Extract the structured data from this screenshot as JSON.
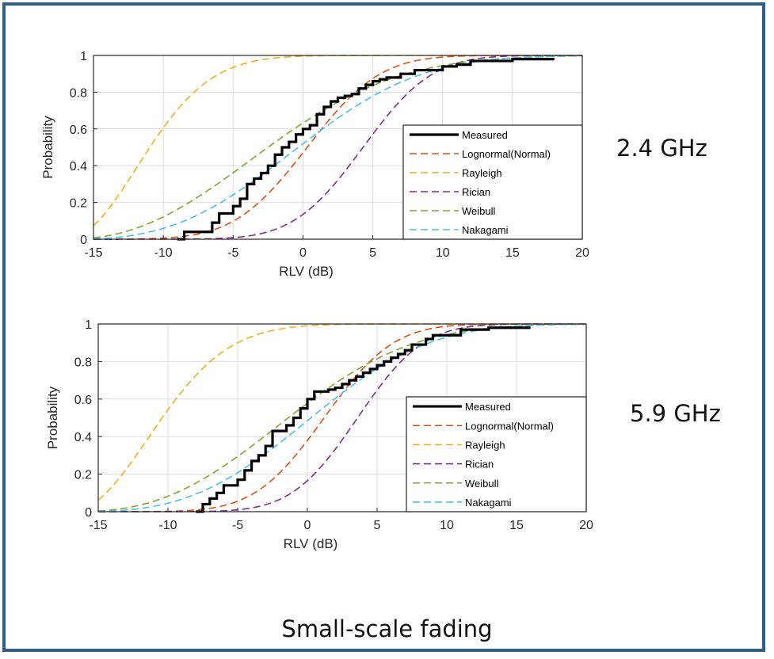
{
  "freq_labels": [
    "2.4 GHz",
    "5.9 GHz"
  ],
  "caption": "Small-scale fading",
  "chart_data": [
    {
      "type": "line",
      "title": "",
      "xlabel": "RLV (dB)",
      "ylabel": "Probability",
      "xlim": [
        -15,
        20
      ],
      "ylim": [
        0,
        1
      ],
      "xticks": [
        -15,
        -10,
        -5,
        0,
        5,
        10,
        15,
        20
      ],
      "yticks": [
        0,
        0.2,
        0.4,
        0.6,
        0.8,
        1
      ],
      "grid": true,
      "legend_position": "bottom-right",
      "series": [
        {
          "name": "Measured",
          "color": "#000000",
          "dashed": false,
          "style": "step",
          "x": [
            -9,
            -8.5,
            -6.5,
            -6,
            -5,
            -4.5,
            -4,
            -3.5,
            -3,
            -2.5,
            -2,
            -1.5,
            -1,
            -0.5,
            0,
            0.5,
            1,
            1.5,
            2,
            2.5,
            3,
            3.5,
            4,
            4.5,
            5,
            5.5,
            6,
            7,
            8,
            10,
            11,
            12,
            15,
            18
          ],
          "y": [
            0,
            0.04,
            0.09,
            0.14,
            0.18,
            0.22,
            0.3,
            0.33,
            0.36,
            0.4,
            0.46,
            0.5,
            0.53,
            0.57,
            0.6,
            0.62,
            0.68,
            0.72,
            0.75,
            0.77,
            0.78,
            0.79,
            0.82,
            0.84,
            0.86,
            0.87,
            0.88,
            0.9,
            0.92,
            0.94,
            0.95,
            0.97,
            0.98,
            0.98
          ]
        },
        {
          "name": "Lognormal(Normal)",
          "color": "#d95319",
          "dashed": true,
          "style": "normal",
          "mu": 0.3,
          "sigma": 4.1
        },
        {
          "name": "Rayleigh",
          "color": "#edb120",
          "dashed": true,
          "style": "rayleigh",
          "scale": 11,
          "shift": -17
        },
        {
          "name": "Rician",
          "color": "#7e2f8e",
          "dashed": true,
          "style": "normal",
          "mu": 4.3,
          "sigma": 3.9
        },
        {
          "name": "Weibull",
          "color": "#77ac30",
          "dashed": true,
          "style": "weibull",
          "scale": 17,
          "shape": 2.3,
          "shift": -17
        },
        {
          "name": "Nakagami",
          "color": "#4dbeee",
          "dashed": true,
          "style": "weibull",
          "scale": 19,
          "shape": 2.8,
          "shift": -17
        }
      ]
    },
    {
      "type": "line",
      "title": "",
      "xlabel": "RLV (dB)",
      "ylabel": "Probability",
      "xlim": [
        -15,
        20
      ],
      "ylim": [
        0,
        1
      ],
      "xticks": [
        -15,
        -10,
        -5,
        0,
        5,
        10,
        15,
        20
      ],
      "yticks": [
        0,
        0.2,
        0.4,
        0.6,
        0.8,
        1
      ],
      "grid": true,
      "legend_position": "bottom-right",
      "series": [
        {
          "name": "Measured",
          "color": "#000000",
          "dashed": false,
          "style": "step",
          "x": [
            -8,
            -7.5,
            -7,
            -6.5,
            -6,
            -5,
            -4.5,
            -4,
            -3.5,
            -3,
            -2.5,
            -2,
            -1.5,
            -1,
            -0.5,
            0,
            0.5,
            1,
            1.5,
            2,
            2.5,
            3,
            3.5,
            4,
            4.5,
            5,
            5.5,
            6,
            6.5,
            7,
            7.5,
            8,
            8.5,
            9,
            11,
            13,
            16
          ],
          "y": [
            0,
            0.04,
            0.07,
            0.1,
            0.14,
            0.17,
            0.22,
            0.27,
            0.3,
            0.35,
            0.43,
            0.43,
            0.46,
            0.5,
            0.55,
            0.6,
            0.64,
            0.64,
            0.65,
            0.66,
            0.68,
            0.7,
            0.72,
            0.74,
            0.76,
            0.78,
            0.8,
            0.82,
            0.84,
            0.86,
            0.89,
            0.89,
            0.92,
            0.94,
            0.97,
            0.98,
            0.98
          ]
        },
        {
          "name": "Lognormal(Normal)",
          "color": "#d95319",
          "dashed": true,
          "style": "normal",
          "mu": 1.2,
          "sigma": 3.9
        },
        {
          "name": "Rayleigh",
          "color": "#edb120",
          "dashed": true,
          "style": "rayleigh",
          "scale": 12,
          "shift": -17
        },
        {
          "name": "Rician",
          "color": "#7e2f8e",
          "dashed": true,
          "style": "normal",
          "mu": 3.6,
          "sigma": 3.7
        },
        {
          "name": "Weibull",
          "color": "#77ac30",
          "dashed": true,
          "style": "weibull",
          "scale": 18,
          "shape": 2.6,
          "shift": -17
        },
        {
          "name": "Nakagami",
          "color": "#4dbeee",
          "dashed": true,
          "style": "weibull",
          "scale": 19.5,
          "shape": 3.0,
          "shift": -17
        }
      ]
    }
  ]
}
